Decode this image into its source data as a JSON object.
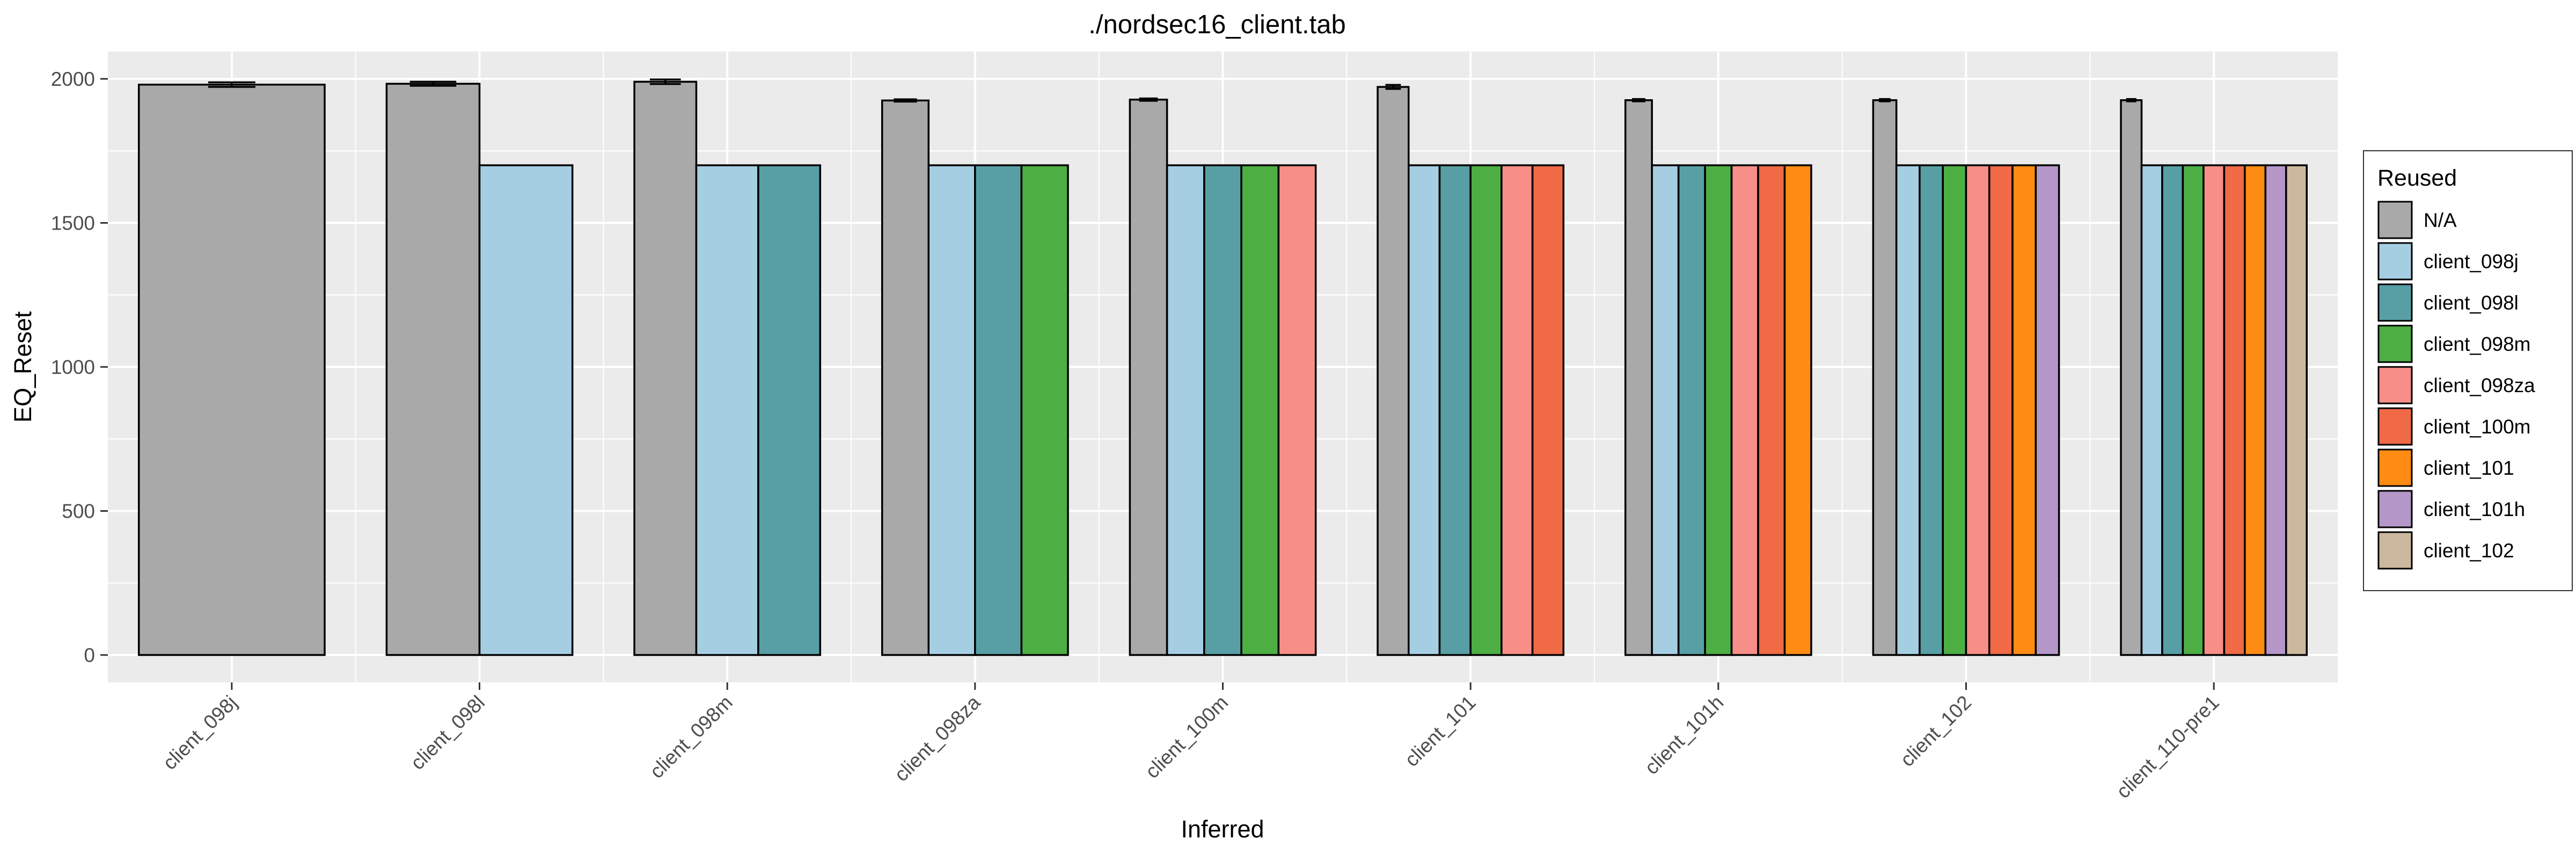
{
  "chart_data": {
    "type": "bar",
    "title": "./nordsec16_client.tab",
    "xlabel": "Inferred",
    "ylabel": "EQ_Reset",
    "ylim": [
      -95,
      2095
    ],
    "yticks": [
      0,
      500,
      1000,
      1500,
      2000
    ],
    "grid": true,
    "legend_position": "right",
    "legend_title": "Reused",
    "categories": [
      "client_098j",
      "client_098l",
      "client_098m",
      "client_098za",
      "client_100m",
      "client_101",
      "client_101h",
      "client_102",
      "client_110-pre1"
    ],
    "series": [
      {
        "name": "N/A",
        "color": "#A9A9A9",
        "values": [
          1980,
          1983,
          1990,
          1925,
          1928,
          1972,
          1926,
          1926,
          1926
        ]
      },
      {
        "name": "client_098j",
        "color": "#A6CEE3",
        "values": [
          null,
          1700,
          1700,
          1700,
          1700,
          1700,
          1700,
          1700,
          1700
        ]
      },
      {
        "name": "client_098l",
        "color": "#579FA5",
        "values": [
          null,
          null,
          1700,
          1700,
          1700,
          1700,
          1700,
          1700,
          1700
        ]
      },
      {
        "name": "client_098m",
        "color": "#4DAF43",
        "values": [
          null,
          null,
          null,
          1700,
          1700,
          1700,
          1700,
          1700,
          1700
        ]
      },
      {
        "name": "client_098za",
        "color": "#F88E88",
        "values": [
          null,
          null,
          null,
          null,
          1700,
          1700,
          1700,
          1700,
          1700
        ]
      },
      {
        "name": "client_100m",
        "color": "#EF6A45",
        "values": [
          null,
          null,
          null,
          null,
          null,
          1700,
          1700,
          1700,
          1700
        ]
      },
      {
        "name": "client_101",
        "color": "#FE8B12",
        "values": [
          null,
          null,
          null,
          null,
          null,
          null,
          1700,
          1700,
          1700
        ]
      },
      {
        "name": "client_101h",
        "color": "#B497C8",
        "values": [
          null,
          null,
          null,
          null,
          null,
          null,
          null,
          1700,
          1700
        ]
      },
      {
        "name": "client_102",
        "color": "#CCB99D",
        "values": [
          null,
          null,
          null,
          null,
          null,
          null,
          null,
          null,
          1700
        ]
      }
    ],
    "error_bars": [
      [
        1972,
        1988
      ],
      [
        1976,
        1990
      ],
      [
        1982,
        1998
      ],
      [
        1921,
        1929
      ],
      [
        1924,
        1932
      ],
      [
        1965,
        1979
      ],
      [
        1922,
        1930
      ],
      [
        1922,
        1930
      ],
      [
        1922,
        1930
      ]
    ],
    "colors": {
      "panel_background": "#EBEBEB",
      "grid": "#FFFFFF",
      "text": "#4D4D4D",
      "bar_outline": "#000000"
    }
  }
}
